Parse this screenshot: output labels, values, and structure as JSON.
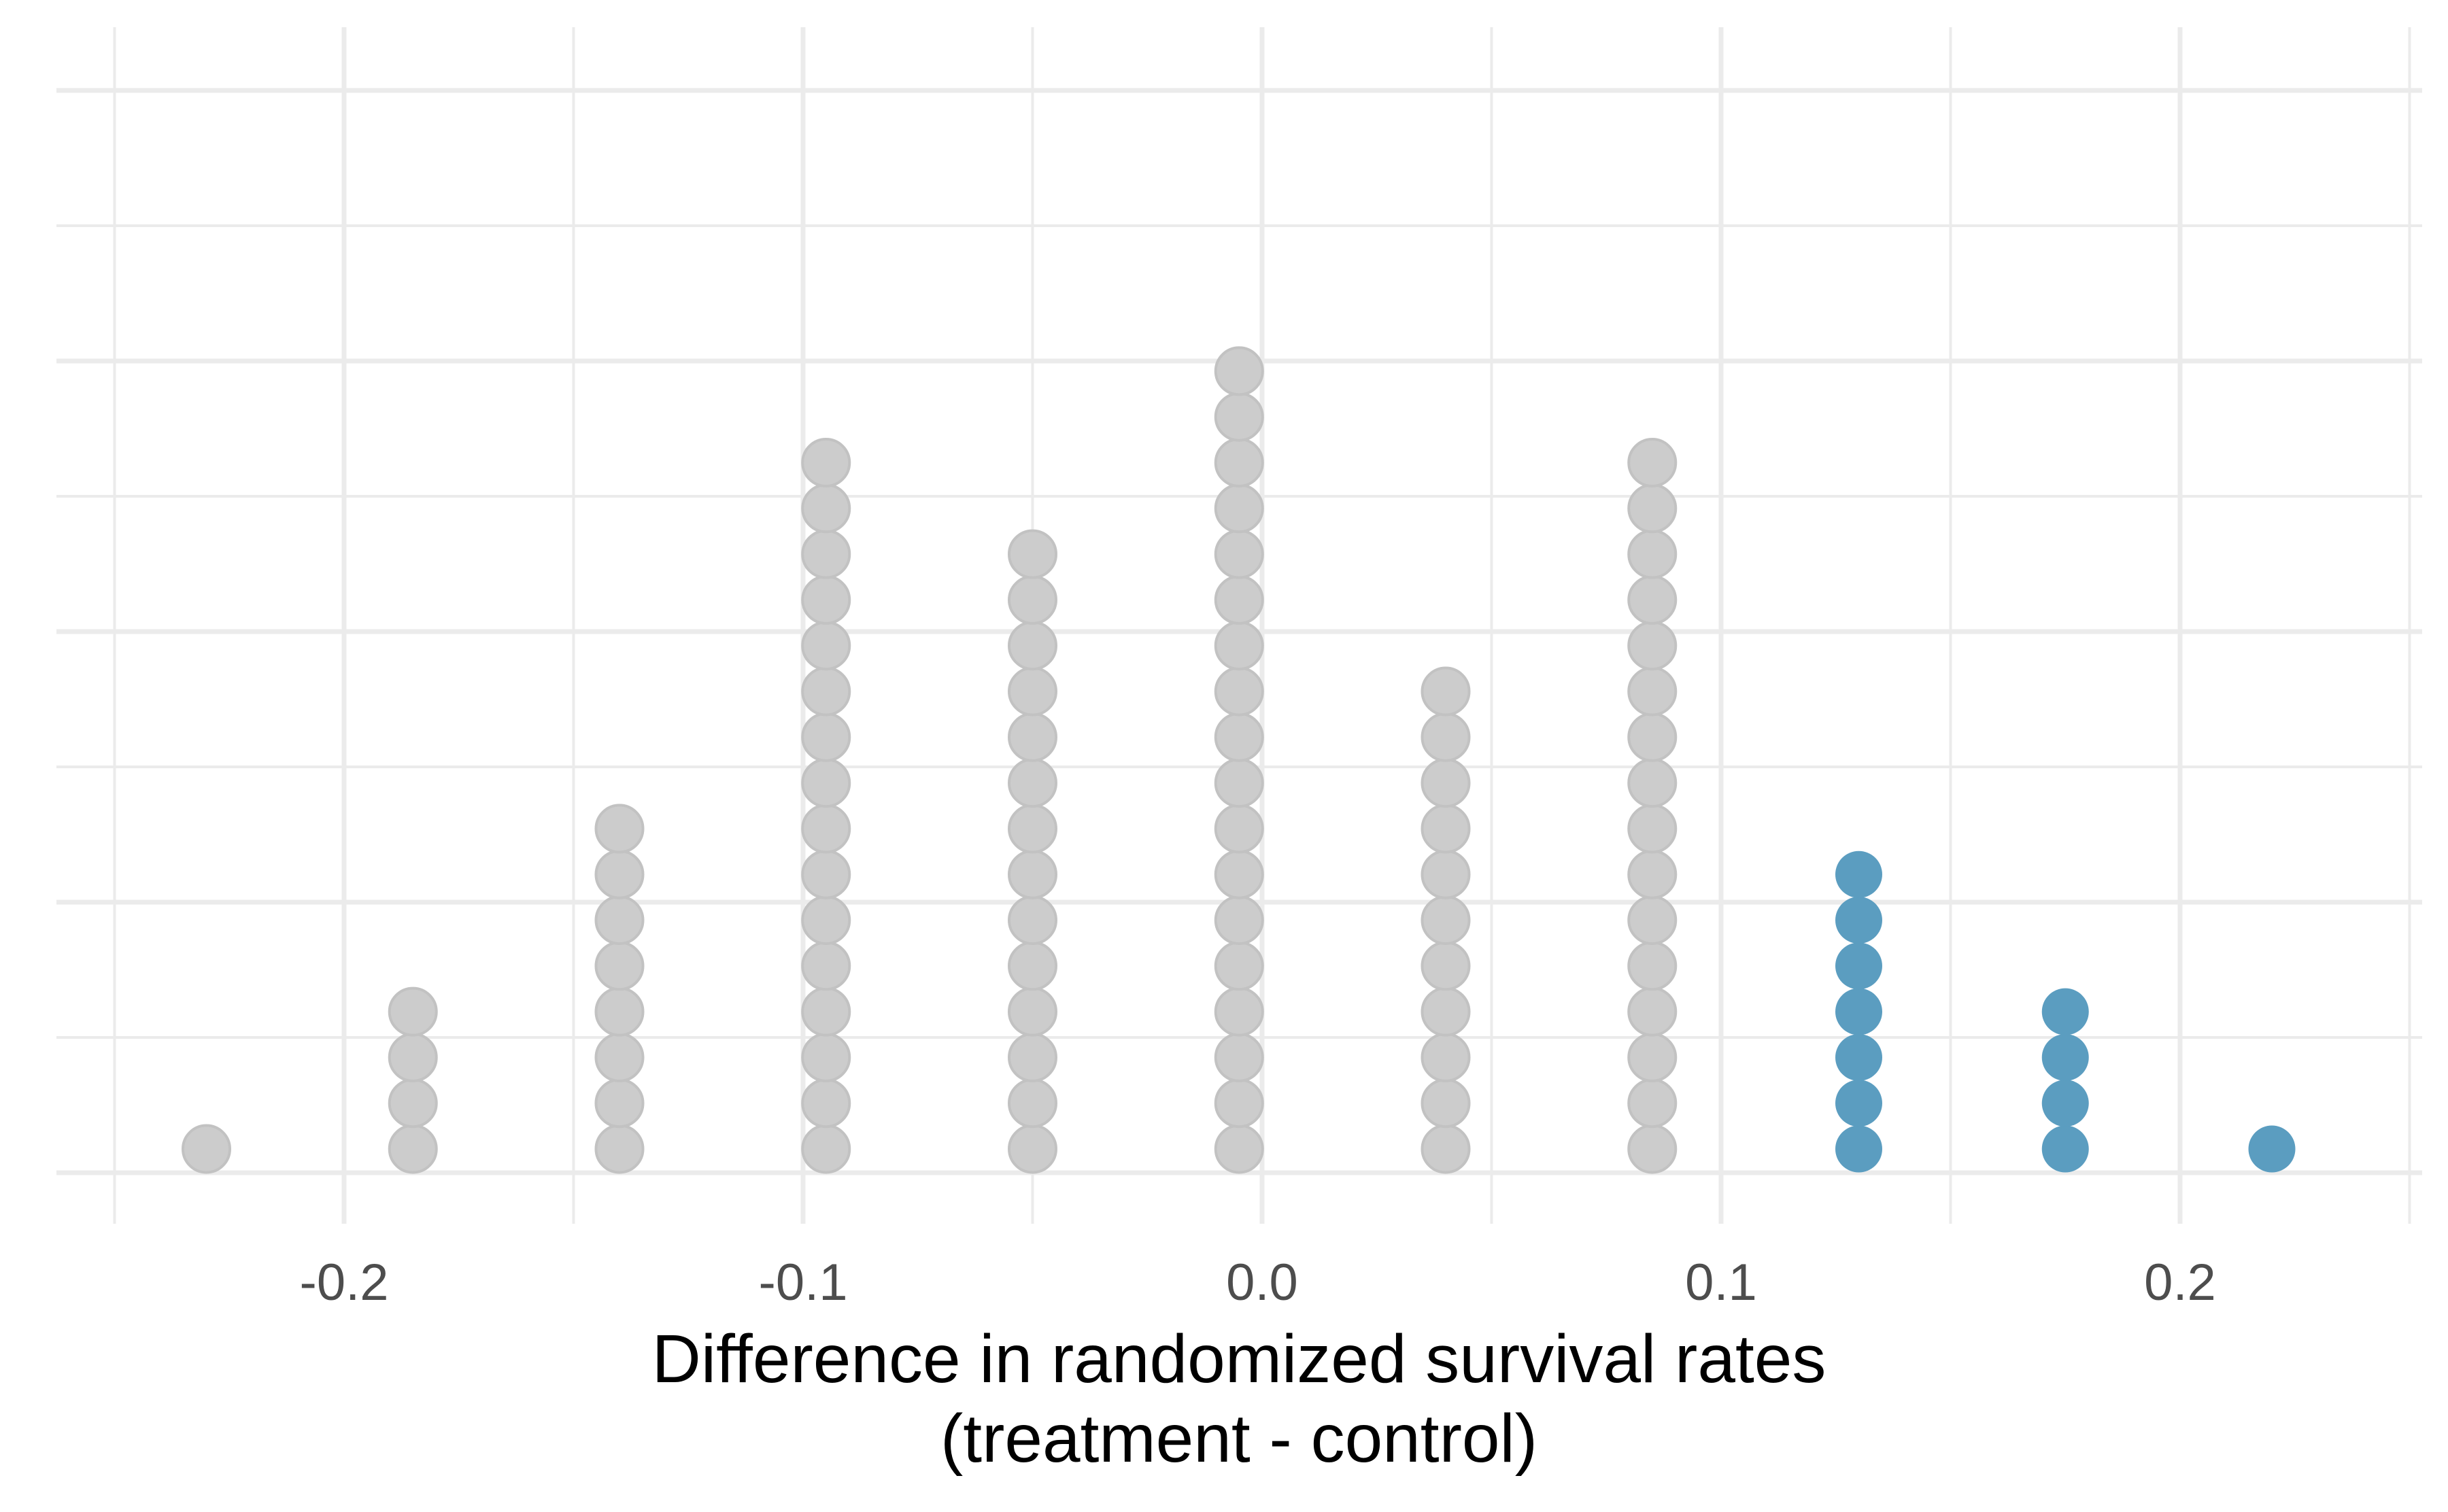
{
  "chart_data": {
    "type": "dotplot",
    "xlabel_line1": "Difference in randomized survival rates",
    "xlabel_line2": "(treatment - control)",
    "xlim": [
      -0.25,
      0.25
    ],
    "x_ticks": [
      -0.2,
      -0.1,
      0.0,
      0.1,
      0.2
    ],
    "x_tick_labels": [
      "-0.2",
      "-0.1",
      "0.0",
      "0.1",
      "0.2"
    ],
    "y_grid_levels": 9,
    "grid": true,
    "legend": "none",
    "colors": {
      "default": "#cccccc",
      "highlight": "#5b9dc0",
      "grid": "#ebebeb"
    },
    "stacks": [
      {
        "x": -0.23,
        "count": 1,
        "highlight": false
      },
      {
        "x": -0.185,
        "count": 4,
        "highlight": false
      },
      {
        "x": -0.14,
        "count": 8,
        "highlight": false
      },
      {
        "x": -0.095,
        "count": 16,
        "highlight": false
      },
      {
        "x": -0.05,
        "count": 14,
        "highlight": false
      },
      {
        "x": -0.005,
        "count": 18,
        "highlight": false
      },
      {
        "x": 0.04,
        "count": 11,
        "highlight": false
      },
      {
        "x": 0.085,
        "count": 16,
        "highlight": false
      },
      {
        "x": 0.13,
        "count": 7,
        "highlight": true
      },
      {
        "x": 0.175,
        "count": 4,
        "highlight": true
      },
      {
        "x": 0.22,
        "count": 1,
        "highlight": true
      }
    ]
  }
}
